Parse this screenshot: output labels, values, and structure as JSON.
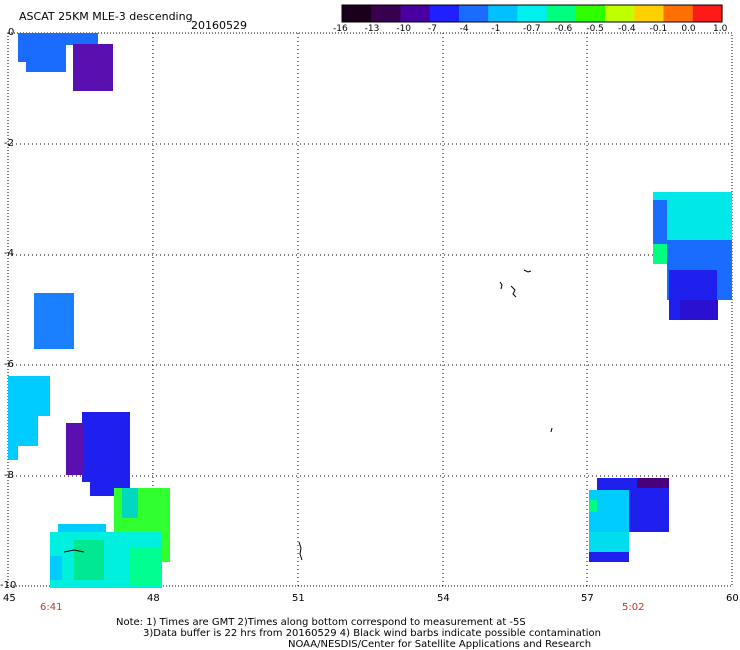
{
  "header": {
    "title": "ASCAT 25KM MLE-3 descending",
    "date": "20160529"
  },
  "colorbar": {
    "labels": [
      "-16",
      "-13",
      "-10",
      "-7",
      "-4",
      "-1",
      "-0.7",
      "-0.6",
      "-0.5",
      "-0.4",
      "-0.1",
      "0.0",
      "1.0"
    ],
    "colors": [
      "#1a001a",
      "#3a0050",
      "#4a00a0",
      "#2020ff",
      "#1a6cff",
      "#00c0ff",
      "#00f0f0",
      "#00ff80",
      "#30ff00",
      "#c0ff00",
      "#ffd000",
      "#ff7000",
      "#ff1a1a"
    ]
  },
  "axes": {
    "x_ticks": [
      "45",
      "48",
      "51",
      "54",
      "57",
      "60"
    ],
    "y_ticks": [
      "0",
      "-2",
      "-4",
      "-6",
      "-8",
      "-10"
    ],
    "grid": true,
    "xlim": [
      45,
      60
    ],
    "ylim": [
      -10,
      0
    ]
  },
  "times": {
    "left": "6:41",
    "right": "5:02"
  },
  "notes": {
    "line1": "Note: 1) Times are GMT 2)Times along bottom correspond to measurement at -5S",
    "line2": "3)Data buffer is 22 hrs from 20160529 4) Black wind barbs indicate possible contamination",
    "line3": "NOAA/NESDIS/Center for Satellite Applications and Research"
  }
}
